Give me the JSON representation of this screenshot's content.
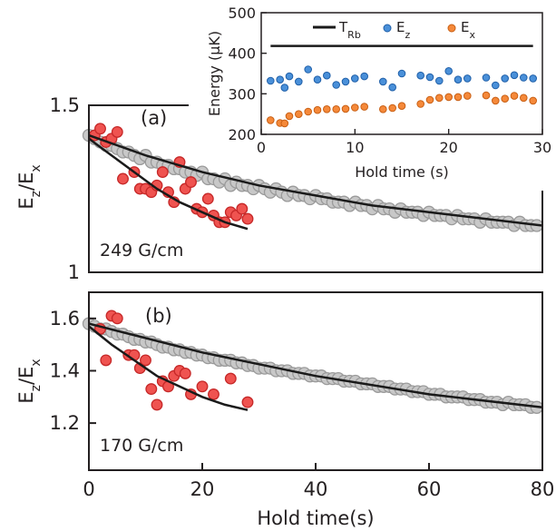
{
  "chart_data": [
    {
      "id": "panel_a",
      "type": "scatter",
      "panel_label": "(a)",
      "annotation": "249 G/cm",
      "ylabel": {
        "main": "E",
        "sub1": "z",
        "sep": "/E",
        "sub2": "x"
      },
      "xlim": [
        0,
        80
      ],
      "ylim": [
        1.0,
        1.5
      ],
      "yticks": [
        1.0,
        1.5
      ],
      "ytick_labels": [
        "1",
        "1.5"
      ],
      "series": [
        {
          "style": "gray-circles",
          "color": "#c8c8c8",
          "edge": "#9a9a9a",
          "x": [
            0,
            1,
            2,
            3,
            4,
            5,
            6,
            7,
            8,
            9,
            10,
            11,
            12,
            13,
            14,
            15,
            16,
            17,
            18,
            19,
            20,
            21,
            22,
            23,
            24,
            25,
            26,
            27,
            28,
            29,
            30,
            31,
            32,
            33,
            34,
            35,
            36,
            37,
            38,
            39,
            40,
            41,
            42,
            43,
            44,
            45,
            46,
            47,
            48,
            49,
            50,
            51,
            52,
            53,
            54,
            55,
            56,
            57,
            58,
            59,
            60,
            61,
            62,
            63,
            64,
            65,
            66,
            67,
            68,
            69,
            70,
            71,
            72,
            73,
            74,
            75,
            76,
            77,
            78,
            79
          ],
          "y": [
            1.41,
            1.4,
            1.39,
            1.38,
            1.38,
            1.37,
            1.36,
            1.36,
            1.35,
            1.34,
            1.35,
            1.33,
            1.33,
            1.32,
            1.32,
            1.31,
            1.31,
            1.3,
            1.3,
            1.29,
            1.3,
            1.28,
            1.28,
            1.27,
            1.28,
            1.26,
            1.27,
            1.26,
            1.26,
            1.25,
            1.26,
            1.25,
            1.24,
            1.25,
            1.24,
            1.23,
            1.24,
            1.23,
            1.23,
            1.22,
            1.23,
            1.22,
            1.22,
            1.21,
            1.21,
            1.21,
            1.2,
            1.21,
            1.2,
            1.2,
            1.19,
            1.2,
            1.19,
            1.19,
            1.18,
            1.19,
            1.18,
            1.18,
            1.18,
            1.17,
            1.18,
            1.17,
            1.17,
            1.17,
            1.16,
            1.17,
            1.16,
            1.16,
            1.16,
            1.15,
            1.16,
            1.15,
            1.15,
            1.15,
            1.15,
            1.14,
            1.15,
            1.14,
            1.14,
            1.14
          ]
        },
        {
          "style": "red-circles",
          "color": "#ef5350",
          "edge": "#c62828",
          "x": [
            1,
            2,
            3,
            4,
            5,
            6,
            8,
            9,
            10,
            11,
            12,
            13,
            14,
            15,
            16,
            17,
            18,
            19,
            20,
            21,
            22,
            23,
            24,
            25,
            26,
            27,
            28
          ],
          "y": [
            1.41,
            1.43,
            1.39,
            1.4,
            1.42,
            1.28,
            1.3,
            1.25,
            1.25,
            1.24,
            1.26,
            1.3,
            1.24,
            1.21,
            1.33,
            1.25,
            1.27,
            1.19,
            1.18,
            1.22,
            1.17,
            1.15,
            1.15,
            1.18,
            1.17,
            1.19,
            1.16
          ]
        }
      ],
      "fits": [
        {
          "color": "#1a1a1a",
          "x": [
            0,
            10,
            20,
            30,
            40,
            50,
            60,
            70,
            80
          ],
          "y": [
            1.41,
            1.35,
            1.3,
            1.26,
            1.23,
            1.2,
            1.18,
            1.16,
            1.14
          ]
        },
        {
          "color": "#1a1a1a",
          "x": [
            0,
            4,
            8,
            12,
            16,
            20,
            24,
            28
          ],
          "y": [
            1.4,
            1.35,
            1.3,
            1.25,
            1.21,
            1.18,
            1.15,
            1.13
          ]
        }
      ]
    },
    {
      "id": "panel_b",
      "type": "scatter",
      "panel_label": "(b)",
      "annotation": "170 G/cm",
      "ylabel": {
        "main": "E",
        "sub1": "z",
        "sep": "/E",
        "sub2": "x"
      },
      "xlabel": "Hold time(s)",
      "xlim": [
        0,
        80
      ],
      "ylim": [
        1.02,
        1.7
      ],
      "xticks": [
        0,
        20,
        40,
        60,
        80
      ],
      "xtick_labels": [
        "0",
        "20",
        "40",
        "60",
        "80"
      ],
      "yticks": [
        1.2,
        1.4,
        1.6
      ],
      "ytick_labels": [
        "1.2",
        "1.4",
        "1.6"
      ],
      "series": [
        {
          "style": "gray-circles",
          "color": "#c8c8c8",
          "edge": "#9a9a9a",
          "x": [
            0,
            1,
            2,
            3,
            4,
            5,
            6,
            7,
            8,
            9,
            10,
            11,
            12,
            13,
            14,
            15,
            16,
            17,
            18,
            19,
            20,
            21,
            22,
            23,
            24,
            25,
            26,
            27,
            28,
            29,
            30,
            31,
            32,
            33,
            34,
            35,
            36,
            37,
            38,
            39,
            40,
            41,
            42,
            43,
            44,
            45,
            46,
            47,
            48,
            49,
            50,
            51,
            52,
            53,
            54,
            55,
            56,
            57,
            58,
            59,
            60,
            61,
            62,
            63,
            64,
            65,
            66,
            67,
            68,
            69,
            70,
            71,
            72,
            73,
            74,
            75,
            76,
            77,
            78,
            79
          ],
          "y": [
            1.58,
            1.57,
            1.56,
            1.56,
            1.55,
            1.54,
            1.54,
            1.53,
            1.52,
            1.52,
            1.51,
            1.51,
            1.5,
            1.49,
            1.49,
            1.48,
            1.48,
            1.47,
            1.47,
            1.46,
            1.46,
            1.45,
            1.45,
            1.44,
            1.44,
            1.44,
            1.43,
            1.43,
            1.42,
            1.42,
            1.41,
            1.41,
            1.41,
            1.4,
            1.4,
            1.4,
            1.39,
            1.39,
            1.39,
            1.38,
            1.38,
            1.38,
            1.37,
            1.37,
            1.37,
            1.36,
            1.36,
            1.36,
            1.35,
            1.35,
            1.35,
            1.34,
            1.34,
            1.34,
            1.33,
            1.33,
            1.33,
            1.32,
            1.32,
            1.32,
            1.31,
            1.31,
            1.31,
            1.3,
            1.3,
            1.3,
            1.3,
            1.29,
            1.29,
            1.29,
            1.28,
            1.28,
            1.28,
            1.27,
            1.28,
            1.27,
            1.27,
            1.27,
            1.26,
            1.26
          ]
        },
        {
          "style": "red-circles",
          "color": "#ef5350",
          "edge": "#c62828",
          "x": [
            2,
            3,
            4,
            5,
            7,
            8,
            9,
            10,
            11,
            12,
            13,
            14,
            15,
            16,
            17,
            18,
            20,
            22,
            25,
            28
          ],
          "y": [
            1.56,
            1.44,
            1.61,
            1.6,
            1.46,
            1.46,
            1.41,
            1.44,
            1.33,
            1.27,
            1.36,
            1.34,
            1.38,
            1.4,
            1.39,
            1.31,
            1.34,
            1.31,
            1.37,
            1.28
          ]
        }
      ],
      "fits": [
        {
          "color": "#1a1a1a",
          "x": [
            0,
            20,
            40,
            60,
            80
          ],
          "y": [
            1.58,
            1.47,
            1.38,
            1.31,
            1.26
          ]
        },
        {
          "color": "#1a1a1a",
          "x": [
            0,
            4,
            8,
            12,
            16,
            20,
            24,
            28
          ],
          "y": [
            1.57,
            1.5,
            1.44,
            1.38,
            1.34,
            1.3,
            1.27,
            1.25
          ]
        }
      ]
    },
    {
      "id": "inset",
      "type": "scatter",
      "xlabel": "Hold time (s)",
      "ylabel": "Energy (μK)",
      "xlim": [
        0,
        30
      ],
      "ylim": [
        200,
        500
      ],
      "xticks": [
        0,
        10,
        20,
        30
      ],
      "xtick_labels": [
        "0",
        "10",
        "20",
        "30"
      ],
      "yticks": [
        200,
        300,
        400,
        500
      ],
      "ytick_labels": [
        "200",
        "300",
        "400",
        "500"
      ],
      "legend_placement": "top",
      "legend": [
        {
          "key": "trb",
          "main": "T",
          "sub": "Rb",
          "marker": "line",
          "color": "#1a1a1a"
        },
        {
          "key": "ez",
          "main": "E",
          "sub": "z",
          "marker": "circle",
          "color": "#4a90d9",
          "edge": "#1f5fa8"
        },
        {
          "key": "ex",
          "main": "E",
          "sub": "x",
          "marker": "circle",
          "color": "#f5893a",
          "edge": "#c85f14"
        }
      ],
      "series": [
        {
          "key": "ez",
          "color": "#4a90d9",
          "edge": "#1f5fa8",
          "x": [
            1,
            2,
            2.5,
            3,
            4,
            5,
            6,
            7,
            8,
            9,
            10,
            11,
            13,
            14,
            15,
            17,
            18,
            19,
            20,
            21,
            22,
            24,
            25,
            26,
            27,
            28,
            29
          ],
          "y": [
            332,
            335,
            315,
            343,
            330,
            360,
            335,
            345,
            322,
            330,
            338,
            343,
            330,
            316,
            350,
            345,
            341,
            332,
            356,
            335,
            338,
            340,
            321,
            338,
            346,
            340,
            338
          ]
        },
        {
          "key": "ex",
          "color": "#f5893a",
          "edge": "#c85f14",
          "x": [
            1,
            2,
            2.5,
            3,
            4,
            5,
            6,
            7,
            8,
            9,
            10,
            11,
            13,
            14,
            15,
            17,
            18,
            19,
            20,
            21,
            22,
            24,
            25,
            26,
            27,
            28,
            29
          ],
          "y": [
            235,
            228,
            227,
            245,
            250,
            256,
            260,
            262,
            262,
            263,
            266,
            268,
            262,
            265,
            270,
            275,
            285,
            290,
            292,
            292,
            295,
            296,
            283,
            288,
            295,
            290,
            283
          ]
        },
        {
          "key": "trb",
          "color": "#1a1a1a",
          "type": "line",
          "x": [
            1,
            29
          ],
          "y": [
            418,
            418
          ]
        }
      ]
    }
  ]
}
